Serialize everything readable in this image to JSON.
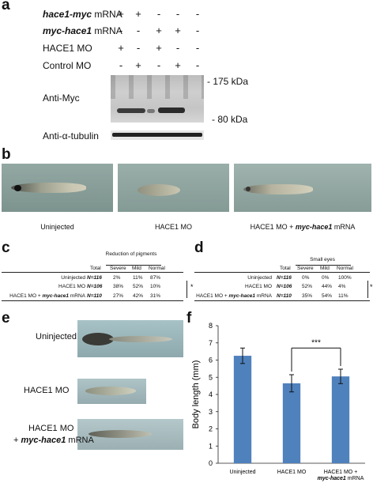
{
  "panel_a": {
    "label": "a",
    "rows": [
      {
        "label_italic": "hace1-myc",
        "label_rest": " mRNA",
        "signs": [
          "+",
          "+",
          "-",
          "-",
          "-"
        ]
      },
      {
        "label_italic": "myc-hace1",
        "label_rest": " mRNA",
        "signs": [
          "-",
          "-",
          "+",
          "+",
          "-"
        ]
      },
      {
        "label_italic": "",
        "label_rest": "HACE1 MO",
        "signs": [
          "+",
          "-",
          "+",
          "-",
          "-"
        ]
      },
      {
        "label_italic": "",
        "label_rest": "Control MO",
        "signs": [
          "-",
          "+",
          "-",
          "+",
          "-"
        ]
      }
    ],
    "blot_myc_label": "Anti-Myc",
    "blot_tubulin_label": "Anti-α-tubulin",
    "marker_175": "- 175 kDa",
    "marker_80": "- 80 kDa"
  },
  "panel_b": {
    "label": "b",
    "captions": [
      "Uninjected",
      "HACE1 MO",
      "HACE1 MO + "
    ],
    "caption3_italic": "myc-hace1",
    "caption3_rest": " mRNA"
  },
  "panel_c": {
    "label": "c",
    "group_header": "Reduction of pigments",
    "columns": [
      "Total",
      "Severe",
      "Mild",
      "Normal"
    ],
    "rows": [
      {
        "name": "Uninjected",
        "n": "N=116",
        "severe": "2%",
        "mild": "11%",
        "normal": "87%"
      },
      {
        "name": "HACE1 MO",
        "n": "N=106",
        "severe": "38%",
        "mild": "52%",
        "normal": "10%"
      },
      {
        "name": "HACE1 MO + ",
        "name_italic": "myc-hace1",
        "name_rest": " mRNA",
        "n": "N=110",
        "severe": "27%",
        "mild": "42%",
        "normal": "31%"
      }
    ],
    "star": "*"
  },
  "panel_d": {
    "label": "d",
    "group_header": "Small eyes",
    "columns": [
      "Total",
      "Severe",
      "Mild",
      "Normal"
    ],
    "rows": [
      {
        "name": "Uninjected",
        "n": "N=116",
        "severe": "0%",
        "mild": "0%",
        "normal": "100%"
      },
      {
        "name": "HACE1 MO",
        "n": "N=106",
        "severe": "52%",
        "mild": "44%",
        "normal": "4%"
      },
      {
        "name": "HACE1 MO + ",
        "name_italic": "myc-hace1",
        "name_rest": " mRNA",
        "n": "N=110",
        "severe": "35%",
        "mild": "54%",
        "normal": "11%"
      }
    ],
    "star": "*"
  },
  "panel_e": {
    "label": "e",
    "labels": [
      "Uninjected",
      "HACE1 MO",
      "HACE1 MO"
    ],
    "label3_line2_prefix": "+ ",
    "label3_line2_italic": "myc-hace1",
    "label3_line2_rest": " mRNA"
  },
  "panel_f": {
    "label": "f",
    "significance": "***",
    "xlabel3_line2_italic": "myc-hace1",
    "xlabel3_line2_rest": " mRNA"
  },
  "chart_data": {
    "type": "bar",
    "categories": [
      "Uninjected",
      "HACE1 MO",
      "HACE1 MO +"
    ],
    "values": [
      6.25,
      4.65,
      5.05
    ],
    "errors": [
      0.45,
      0.5,
      0.42
    ],
    "ylabel": "Body length (mm)",
    "xlabel": "",
    "ylim": [
      0,
      8
    ],
    "yticks": [
      "0",
      "1",
      "2",
      "3",
      "4",
      "5",
      "6",
      "7",
      "8"
    ],
    "grid": false,
    "bar_color": "#4f81bd"
  }
}
